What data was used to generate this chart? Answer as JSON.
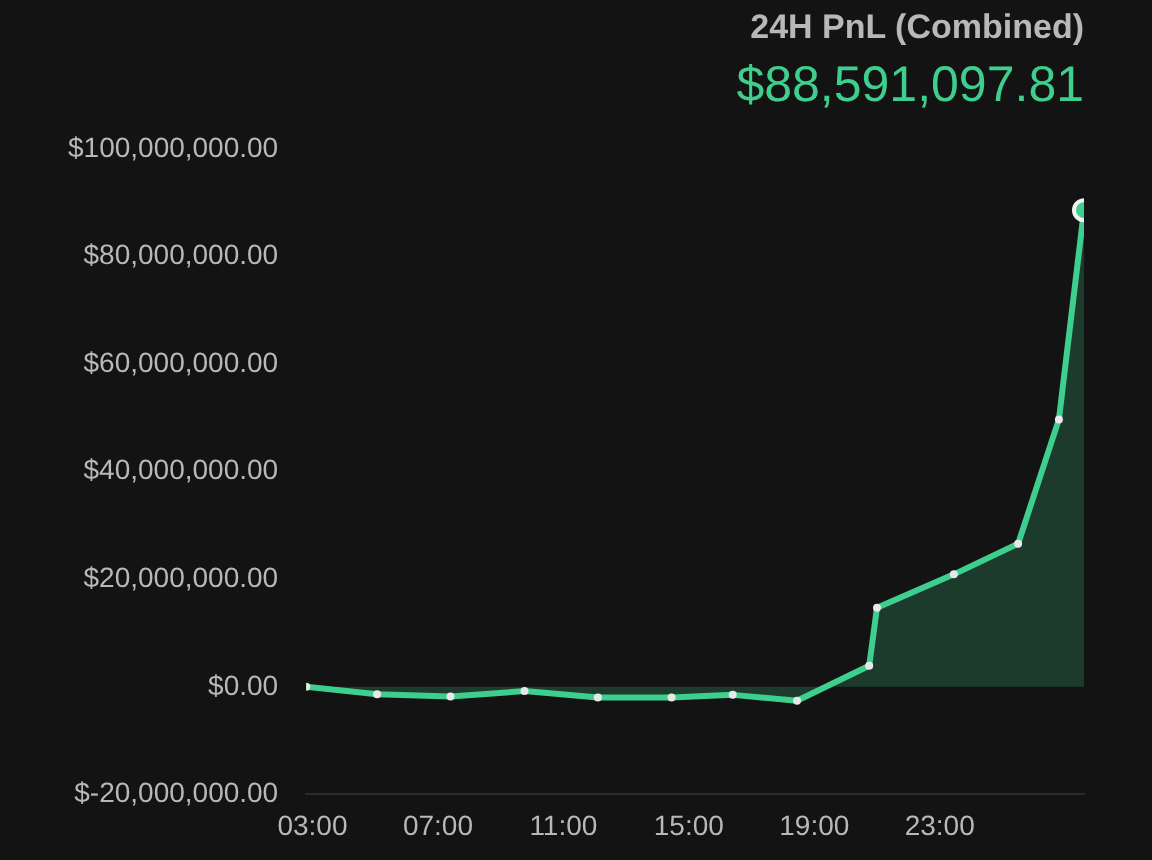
{
  "chart_data": {
    "type": "area",
    "title": "24H PnL (Combined)",
    "subtitle": "$88,591,097.81",
    "color": "#3ecf8e",
    "marker": "circle",
    "x": [
      2.8,
      5.06,
      7.4,
      9.76,
      12.1,
      14.45,
      16.4,
      18.45,
      20.75,
      21.0,
      23.45,
      25.5,
      26.8,
      27.6
    ],
    "values": [
      0,
      -1400000,
      -1800000,
      -800000,
      -2000000,
      -2000000,
      -1500000,
      -2600000,
      3900000,
      14700000,
      20900000,
      26600000,
      49700000,
      88591097.81
    ],
    "xlim": [
      2.8,
      27.6
    ],
    "xticks": [
      {
        "value": 3,
        "label": "03:00"
      },
      {
        "value": 7,
        "label": "07:00"
      },
      {
        "value": 11,
        "label": "11:00"
      },
      {
        "value": 15,
        "label": "15:00"
      },
      {
        "value": 19,
        "label": "19:00"
      },
      {
        "value": 23,
        "label": "23:00"
      }
    ],
    "ylim": [
      -20000000,
      100000000
    ],
    "yticks": [
      {
        "value": -20000000,
        "label": "$-20,000,000.00"
      },
      {
        "value": 0,
        "label": "$0.00"
      },
      {
        "value": 20000000,
        "label": "$20,000,000.00"
      },
      {
        "value": 40000000,
        "label": "$40,000,000.00"
      },
      {
        "value": 60000000,
        "label": "$60,000,000.00"
      },
      {
        "value": 80000000,
        "label": "$80,000,000.00"
      },
      {
        "value": 100000000,
        "label": "$100,000,000.00"
      }
    ]
  }
}
